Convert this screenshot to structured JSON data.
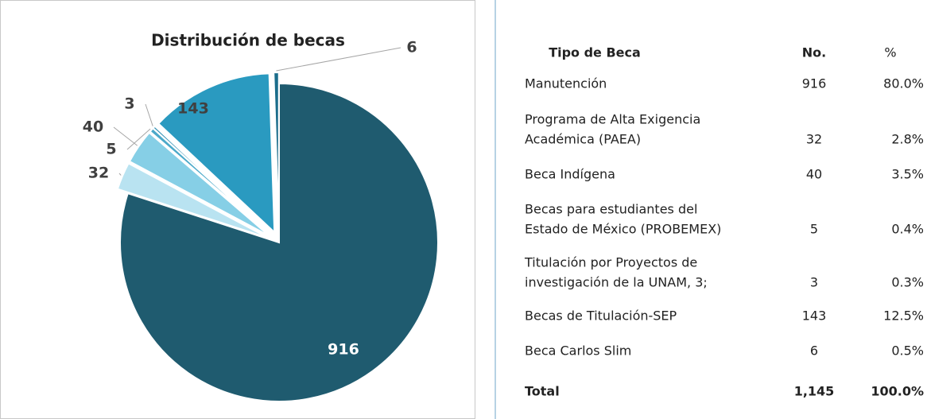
{
  "chart_data": {
    "type": "pie",
    "title": "Distribución de becas",
    "values": [
      916,
      32,
      40,
      5,
      3,
      143,
      6
    ],
    "colors": [
      "#1f5b6f",
      "#b9e3f1",
      "#86cfe6",
      "#4ba9c9",
      "#2f8fb3",
      "#2a9ac0",
      "#1b6d8b"
    ]
  },
  "table": {
    "columns": [
      "Tipo de Beca",
      "No.",
      "%"
    ],
    "rows": [
      [
        [
          "Manutención"
        ],
        "916",
        "80.0%"
      ],
      [
        [
          "Programa de Alta Exigencia",
          "Académica (PAEA)"
        ],
        "32",
        "2.8%"
      ],
      [
        [
          "Beca Indígena"
        ],
        "40",
        "3.5%"
      ],
      [
        [
          "Becas para estudiantes del",
          "Estado de México (PROBEMEX)"
        ],
        "5",
        "0.4%"
      ],
      [
        [
          "Titulación por Proyectos de",
          "investigación de la UNAM, 3;"
        ],
        "3",
        "0.3%"
      ],
      [
        [
          "Becas de Titulación-SEP"
        ],
        "143",
        "12.5%"
      ],
      [
        [
          "Beca Carlos Slim"
        ],
        "6",
        "0.5%"
      ]
    ],
    "total": [
      "Total",
      "1,145",
      "100.0%"
    ]
  }
}
